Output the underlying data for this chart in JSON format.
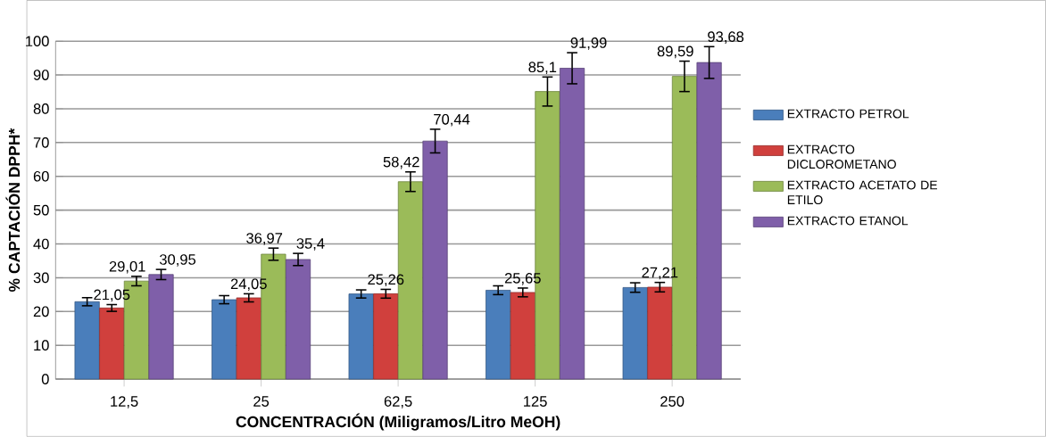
{
  "chart_data": {
    "type": "bar",
    "xlabel": "CONCENTRACIÓN (Miligramos/Litro MeOH)",
    "ylabel": "% CAPTACIÓN DPPH*",
    "categories": [
      "12,5",
      "25",
      "62,5",
      "125",
      "250"
    ],
    "series": [
      {
        "name": "EXTRACTO PETROL",
        "color": "#4a7ebb",
        "values": [
          22.9,
          23.5,
          25.2,
          26.3,
          27.1
        ],
        "errors": [
          1.2,
          1.2,
          1.2,
          1.3,
          1.4
        ],
        "value_labels": [
          null,
          null,
          null,
          null,
          null
        ]
      },
      {
        "name": "EXTRACTO DICLOROMETANO",
        "color": "#d0403d",
        "values": [
          21.05,
          24.05,
          25.26,
          25.65,
          27.21
        ],
        "errors": [
          1.0,
          1.2,
          1.3,
          1.3,
          1.4
        ],
        "value_labels": [
          "21,05",
          "24,05",
          "25,26",
          "25,65",
          "27,21"
        ]
      },
      {
        "name": "EXTRACTO ACETATO DE ETILO",
        "color": "#9bbb59",
        "values": [
          29.01,
          36.97,
          58.42,
          85.1,
          89.59
        ],
        "errors": [
          1.4,
          1.8,
          2.9,
          4.3,
          4.5
        ],
        "value_labels": [
          "29,01",
          "36,97",
          "58,42",
          "85,1",
          "89,59"
        ]
      },
      {
        "name": "EXTRACTO ETANOL",
        "color": "#7f5fa9",
        "values": [
          30.95,
          35.4,
          70.44,
          91.99,
          93.68
        ],
        "errors": [
          1.5,
          1.8,
          3.5,
          4.6,
          4.7
        ],
        "value_labels": [
          "30,95",
          "35,4",
          "70,44",
          "91,99",
          "93,68"
        ]
      }
    ],
    "ylim": [
      0,
      100
    ],
    "yticks": [
      0,
      10,
      20,
      30,
      40,
      50,
      60,
      70,
      80,
      90,
      100
    ],
    "grid": "y",
    "legend": "right"
  }
}
